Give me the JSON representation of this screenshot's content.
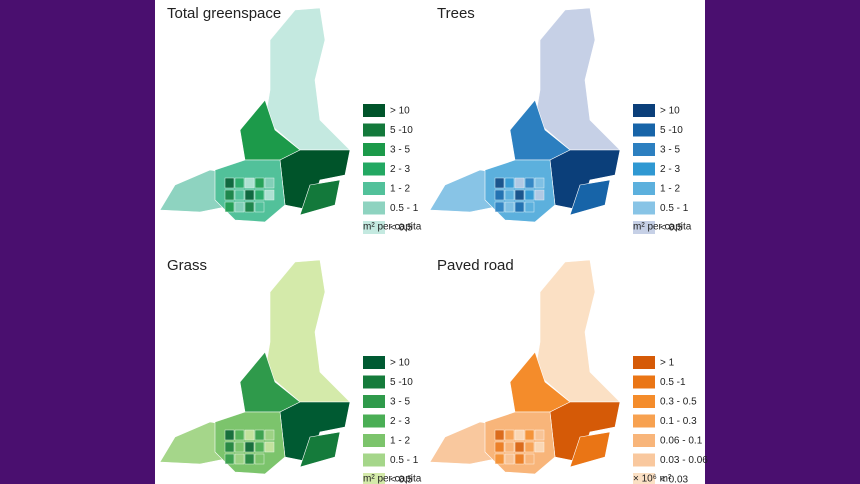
{
  "panels": [
    {
      "title": "Total greenspace",
      "unit": "m² per capita",
      "legend": [
        {
          "label": "> 10",
          "color": "#00542a"
        },
        {
          "label": "5 -10",
          "color": "#13793b"
        },
        {
          "label": "3 - 5",
          "color": "#1c9a4a"
        },
        {
          "label": "2 - 3",
          "color": "#23a862"
        },
        {
          "label": "1 - 2",
          "color": "#52c19a"
        },
        {
          "label": "0.5 - 1",
          "color": "#8ed3c0"
        },
        {
          "label": "< 0.5",
          "color": "#c4e9e0"
        }
      ]
    },
    {
      "title": "Trees",
      "unit": "m² per capita",
      "legend": [
        {
          "label": "> 10",
          "color": "#0b3f7a"
        },
        {
          "label": "5 -10",
          "color": "#1764a8"
        },
        {
          "label": "3 - 5",
          "color": "#2c7fc0"
        },
        {
          "label": "2 - 3",
          "color": "#2f98d2"
        },
        {
          "label": "1 - 2",
          "color": "#5cb0dd"
        },
        {
          "label": "0.5 - 1",
          "color": "#88c4e6"
        },
        {
          "label": "< 0.5",
          "color": "#c6d0e6"
        }
      ]
    },
    {
      "title": "Grass",
      "unit": "m² per capita",
      "legend": [
        {
          "label": "> 10",
          "color": "#005a32"
        },
        {
          "label": "5 -10",
          "color": "#157b3b"
        },
        {
          "label": "3 - 5",
          "color": "#2f9a4b"
        },
        {
          "label": "2 - 3",
          "color": "#4aae55"
        },
        {
          "label": "1 - 2",
          "color": "#7cc46c"
        },
        {
          "label": "0.5 - 1",
          "color": "#a5d68a"
        },
        {
          "label": "< 0.5",
          "color": "#d4eaaa"
        }
      ]
    },
    {
      "title": "Paved road",
      "unit": "× 10⁶  m²",
      "legend": [
        {
          "label": "> 1",
          "color": "#d55a07"
        },
        {
          "label": "0.5 -1",
          "color": "#ea7515"
        },
        {
          "label": "0.3 - 0.5",
          "color": "#f48c2b"
        },
        {
          "label": "0.1 - 0.3",
          "color": "#f7a150"
        },
        {
          "label": "0.06 - 0.1",
          "color": "#f8b57a"
        },
        {
          "label": "0.03 - 0.06",
          "color": "#f9c89e"
        },
        {
          "label": "< 0.03",
          "color": "#fbe0c4"
        }
      ]
    }
  ]
}
